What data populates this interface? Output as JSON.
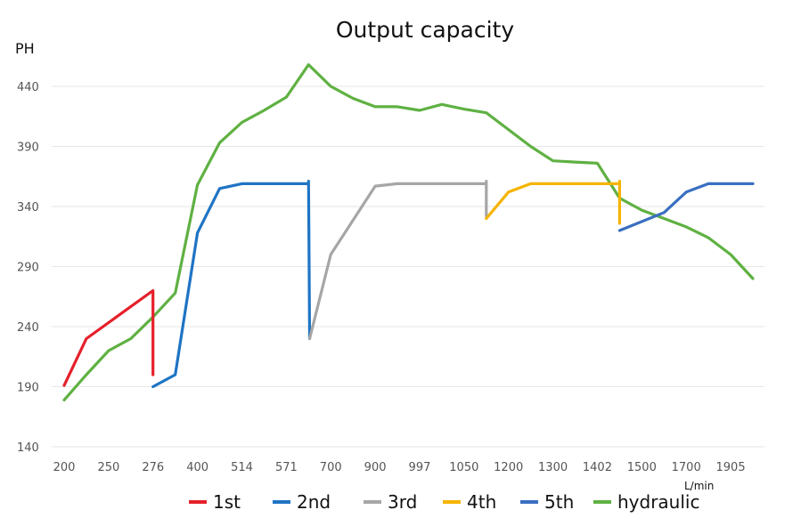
{
  "chart_data": {
    "type": "line",
    "title": "Output capacity",
    "ylabel": "PH",
    "xunit": "L/min",
    "ylim": [
      140,
      460
    ],
    "yticks": [
      140,
      190,
      240,
      290,
      340,
      390,
      440
    ],
    "categories": [
      "200",
      "",
      "250",
      "",
      "276",
      "",
      "400",
      "",
      "514",
      "",
      "571",
      "",
      "700",
      "",
      "900",
      "",
      "997",
      "",
      "1050",
      "",
      "1200",
      "",
      "1300",
      "",
      "1402",
      "",
      "1500",
      "",
      "1700",
      "",
      "1905",
      ""
    ],
    "grid": true,
    "legend_position": "bottom",
    "series": [
      {
        "name": "1st",
        "color": "#e5202a",
        "points": [
          [
            0,
            191
          ],
          [
            1,
            230
          ],
          [
            4,
            270
          ],
          [
            4,
            200
          ]
        ]
      },
      {
        "name": "2nd",
        "color": "#1f74c4",
        "points": [
          [
            4,
            190
          ],
          [
            5,
            200
          ],
          [
            6,
            318
          ],
          [
            7,
            355
          ],
          [
            8,
            359
          ],
          [
            11,
            359
          ],
          [
            11,
            361
          ],
          [
            11.05,
            230
          ]
        ]
      },
      {
        "name": "3rd",
        "color": "#a6a6a6",
        "points": [
          [
            11.05,
            230
          ],
          [
            12,
            300
          ],
          [
            14,
            357
          ],
          [
            15,
            359
          ],
          [
            19,
            359
          ],
          [
            19,
            361
          ],
          [
            19,
            332
          ]
        ]
      },
      {
        "name": "4th",
        "color": "#f5b400",
        "points": [
          [
            19,
            330
          ],
          [
            20,
            352
          ],
          [
            21,
            359
          ],
          [
            25,
            359
          ],
          [
            25,
            361
          ],
          [
            25,
            326
          ]
        ]
      },
      {
        "name": "5th",
        "color": "#3a6fc1",
        "points": [
          [
            25,
            320
          ],
          [
            27,
            335
          ],
          [
            28,
            352
          ],
          [
            29,
            359
          ],
          [
            31,
            359
          ]
        ]
      },
      {
        "name": "hydraulic",
        "color": "#5fb142",
        "points": [
          [
            0,
            179
          ],
          [
            1,
            200
          ],
          [
            2,
            220
          ],
          [
            3,
            230
          ],
          [
            4,
            248
          ],
          [
            5,
            268
          ],
          [
            6,
            358
          ],
          [
            7,
            393
          ],
          [
            8,
            410
          ],
          [
            9,
            420
          ],
          [
            10,
            431
          ],
          [
            11,
            458
          ],
          [
            12,
            440
          ],
          [
            13,
            430
          ],
          [
            14,
            423
          ],
          [
            15,
            423
          ],
          [
            16,
            420
          ],
          [
            17,
            425
          ],
          [
            18,
            421
          ],
          [
            19,
            418
          ],
          [
            20,
            404
          ],
          [
            21,
            390
          ],
          [
            22,
            378
          ],
          [
            23,
            377
          ],
          [
            24,
            376
          ],
          [
            25,
            347
          ],
          [
            26,
            337
          ],
          [
            27,
            330
          ],
          [
            28,
            323
          ],
          [
            29,
            314
          ],
          [
            30,
            300
          ],
          [
            31,
            280
          ]
        ]
      }
    ]
  }
}
